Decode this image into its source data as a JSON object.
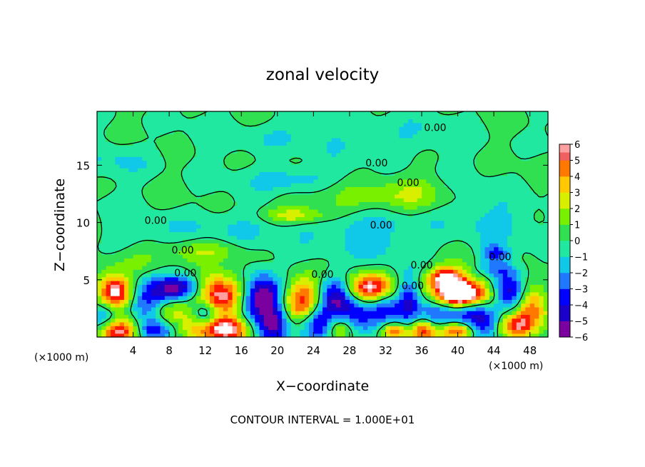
{
  "chart_data": {
    "type": "heatmap",
    "title": "zonal velocity",
    "xlabel": "X−coordinate",
    "ylabel": "Z−coordinate",
    "x_unit_left": "(×1000 m)",
    "x_unit_right": "(×1000 m)",
    "footer": "CONTOUR INTERVAL = 1.000E+01",
    "xlim": [
      0,
      50
    ],
    "ylim": [
      0,
      19.7
    ],
    "x_ticks": [
      4,
      8,
      12,
      16,
      20,
      24,
      28,
      32,
      36,
      40,
      44,
      48
    ],
    "x_tick_labels": [
      "4",
      "8",
      "12",
      "16",
      "20",
      "24",
      "28",
      "32",
      "36",
      "40",
      "44",
      "48"
    ],
    "y_ticks": [
      5,
      10,
      15
    ],
    "y_tick_labels": [
      "5",
      "10",
      "15"
    ],
    "colorbar": {
      "range": [
        -6,
        6
      ],
      "ticks": [
        6,
        5,
        4,
        3,
        2,
        1,
        0,
        -1,
        -2,
        -3,
        -4,
        -5,
        -6
      ],
      "tick_labels": [
        "6",
        "5",
        "4",
        "3",
        "2",
        "1",
        "0",
        "−1",
        "−2",
        "−3",
        "−4",
        "−5",
        "−6"
      ],
      "colors": [
        "#7a00a0",
        "#1a00c8",
        "#0000ff",
        "#2078ff",
        "#10c8e8",
        "#20e8a0",
        "#30e050",
        "#78f000",
        "#d8f000",
        "#ffc800",
        "#ff7800",
        "#ff1800",
        "#f06060",
        "#ffa0a0"
      ]
    },
    "contour_labels": [
      {
        "text": "0.00",
        "x": 37.5,
        "z": 18.3
      },
      {
        "text": "0.00",
        "x": 34.5,
        "z": 13.5
      },
      {
        "text": "0.00",
        "x": 6.5,
        "z": 10.2
      },
      {
        "text": "0.00",
        "x": 9.5,
        "z": 7.6
      },
      {
        "text": "0.00",
        "x": 9.8,
        "z": 5.6
      },
      {
        "text": "0.00",
        "x": 25,
        "z": 5.5
      },
      {
        "text": "0.00",
        "x": 31.5,
        "z": 9.8
      },
      {
        "text": "0.00",
        "x": 36,
        "z": 6.3
      },
      {
        "text": "0.00",
        "x": 35,
        "z": 4.5
      },
      {
        "text": "0.00",
        "x": 44.7,
        "z": 7.0
      },
      {
        "text": "0.00",
        "x": 31,
        "z": 15.2
      }
    ],
    "features": [
      {
        "x": 2.0,
        "z": 3.9,
        "v": 7,
        "sx": 1.3,
        "sz": 1.0
      },
      {
        "x": 0.8,
        "z": 1.8,
        "v": -3,
        "sx": 1.2,
        "sz": 0.8
      },
      {
        "x": 2.5,
        "z": 0.5,
        "v": 6,
        "sx": 1.5,
        "sz": 0.8
      },
      {
        "x": 5.5,
        "z": 3.2,
        "v": -3,
        "sx": 1.5,
        "sz": 1.3
      },
      {
        "x": 8.0,
        "z": 2.3,
        "v": 3,
        "sx": 1.5,
        "sz": 1.0
      },
      {
        "x": 9.0,
        "z": 4.2,
        "v": -6,
        "sx": 2.0,
        "sz": 0.8
      },
      {
        "x": 6.5,
        "z": 0.6,
        "v": -4,
        "sx": 1.5,
        "sz": 0.7
      },
      {
        "x": 11.5,
        "z": 0.8,
        "v": 4,
        "sx": 1.5,
        "sz": 0.8
      },
      {
        "x": 13.5,
        "z": 3.7,
        "v": 7,
        "sx": 2.0,
        "sz": 1.2
      },
      {
        "x": 12.0,
        "z": 2.0,
        "v": -4,
        "sx": 1.0,
        "sz": 1.0
      },
      {
        "x": 14.5,
        "z": 0.7,
        "v": 7,
        "sx": 1.8,
        "sz": 0.8
      },
      {
        "x": 17.0,
        "z": 2.5,
        "v": -3,
        "sx": 1.3,
        "sz": 1.5
      },
      {
        "x": 18.5,
        "z": 3.8,
        "v": -5,
        "sx": 1.3,
        "sz": 1.2
      },
      {
        "x": 19.5,
        "z": 1.2,
        "v": -5,
        "sx": 1.2,
        "sz": 1.2
      },
      {
        "x": 21.5,
        "z": 3.0,
        "v": 2,
        "sx": 1.2,
        "sz": 1.2
      },
      {
        "x": 23.0,
        "z": 3.2,
        "v": 5,
        "sx": 1.2,
        "sz": 1.4
      },
      {
        "x": 24.5,
        "z": 1.2,
        "v": -5,
        "sx": 1.5,
        "sz": 1.0
      },
      {
        "x": 26.5,
        "z": 3.6,
        "v": -5,
        "sx": 1.3,
        "sz": 1.3
      },
      {
        "x": 26.8,
        "z": 0.8,
        "v": 4,
        "sx": 1.2,
        "sz": 0.8
      },
      {
        "x": 29.3,
        "z": 1.8,
        "v": -4,
        "sx": 1.6,
        "sz": 1.3
      },
      {
        "x": 30.2,
        "z": 4.3,
        "v": 7,
        "sx": 1.8,
        "sz": 0.9
      },
      {
        "x": 32.0,
        "z": 2.5,
        "v": -3,
        "sx": 1.0,
        "sz": 1.0
      },
      {
        "x": 33.0,
        "z": 0.5,
        "v": 5,
        "sx": 1.0,
        "sz": 0.6
      },
      {
        "x": 34.5,
        "z": 3.2,
        "v": -4,
        "sx": 1.0,
        "sz": 1.5
      },
      {
        "x": 36.2,
        "z": 0.6,
        "v": 6,
        "sx": 1.0,
        "sz": 0.7
      },
      {
        "x": 37.5,
        "z": 2.0,
        "v": -3,
        "sx": 1.2,
        "sz": 1.2
      },
      {
        "x": 39.5,
        "z": 4.3,
        "v": 6,
        "sx": 2.2,
        "sz": 1.1
      },
      {
        "x": 40.5,
        "z": 3.7,
        "v": 7,
        "sx": 1.5,
        "sz": 0.6
      },
      {
        "x": 38.5,
        "z": 5.3,
        "v": 4,
        "sx": 1.2,
        "sz": 0.6
      },
      {
        "x": 40.0,
        "z": 1.8,
        "v": -3,
        "sx": 1.5,
        "sz": 1.0
      },
      {
        "x": 39.8,
        "z": 0.6,
        "v": 7,
        "sx": 1.5,
        "sz": 0.6
      },
      {
        "x": 42.8,
        "z": 1.6,
        "v": -5,
        "sx": 1.3,
        "sz": 1.3
      },
      {
        "x": 43.5,
        "z": 3.5,
        "v": 3,
        "sx": 1.2,
        "sz": 1.2
      },
      {
        "x": 45.5,
        "z": 4.0,
        "v": -5,
        "sx": 1.5,
        "sz": 1.3
      },
      {
        "x": 46.5,
        "z": 1.0,
        "v": 6,
        "sx": 1.3,
        "sz": 0.8
      },
      {
        "x": 48.2,
        "z": 2.8,
        "v": 5,
        "sx": 1.2,
        "sz": 1.5
      },
      {
        "x": 44.2,
        "z": 7.3,
        "v": -3,
        "sx": 1.0,
        "sz": 0.6
      },
      {
        "x": 44.0,
        "z": 5.9,
        "v": -2,
        "sx": 1.5,
        "sz": 0.5
      },
      {
        "x": 21.5,
        "z": 13.8,
        "v": -2,
        "sx": 3.0,
        "sz": 0.8
      },
      {
        "x": 33.0,
        "z": 17.5,
        "v": -1,
        "sx": 5.0,
        "sz": 1.2
      },
      {
        "x": 20.0,
        "z": 17.5,
        "v": -1,
        "sx": 4.0,
        "sz": 1.0
      },
      {
        "x": 28.0,
        "z": 12.0,
        "v": 1.5,
        "sx": 4.0,
        "sz": 1.0
      },
      {
        "x": 22.0,
        "z": 10.6,
        "v": 2.5,
        "sx": 2.5,
        "sz": 0.5
      },
      {
        "x": 35.0,
        "z": 12.5,
        "v": 1.5,
        "sx": 3.0,
        "sz": 1.0
      },
      {
        "x": 28.0,
        "z": 9.8,
        "v": -1.2,
        "sx": 6.0,
        "sz": 1.0
      },
      {
        "x": 10.0,
        "z": 9.5,
        "v": -1,
        "sx": 6.0,
        "sz": 1.0
      },
      {
        "x": 44.0,
        "z": 10.5,
        "v": -1,
        "sx": 5.0,
        "sz": 1.5
      },
      {
        "x": 5.0,
        "z": 6.5,
        "v": 1.5,
        "sx": 3.0,
        "sz": 0.8
      },
      {
        "x": 12.0,
        "z": 7.5,
        "v": 1.5,
        "sx": 3.0,
        "sz": 0.6
      },
      {
        "x": 30.0,
        "z": 8.0,
        "v": -1,
        "sx": 5.0,
        "sz": 1.0
      },
      {
        "x": 3.0,
        "z": 15.5,
        "v": -1,
        "sx": 3.0,
        "sz": 1.0
      }
    ]
  }
}
